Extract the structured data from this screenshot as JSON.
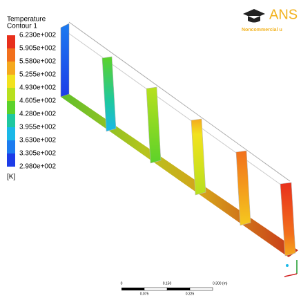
{
  "legend": {
    "title": "Temperature",
    "subtitle": "Contour 1",
    "labels": [
      "6.230e+002",
      "5.905e+002",
      "5.580e+002",
      "5.255e+002",
      "4.930e+002",
      "4.605e+002",
      "4.280e+002",
      "3.955e+002",
      "3.630e+002",
      "3.305e+002",
      "2.980e+002"
    ],
    "colors": [
      "#e8301c",
      "#f2701c",
      "#f5a91e",
      "#f2e21e",
      "#b7e01e",
      "#5cd22a",
      "#1ec8a0",
      "#1ab8e8",
      "#1c7cf0",
      "#1c3ce8"
    ],
    "unit": "[K]"
  },
  "logo": {
    "name": "ANS",
    "note": "Noncommercial u"
  },
  "scale": {
    "top": [
      "0",
      "0.150",
      "0.300 (m)"
    ],
    "bottom": [
      "0.075",
      "0.225"
    ]
  }
}
